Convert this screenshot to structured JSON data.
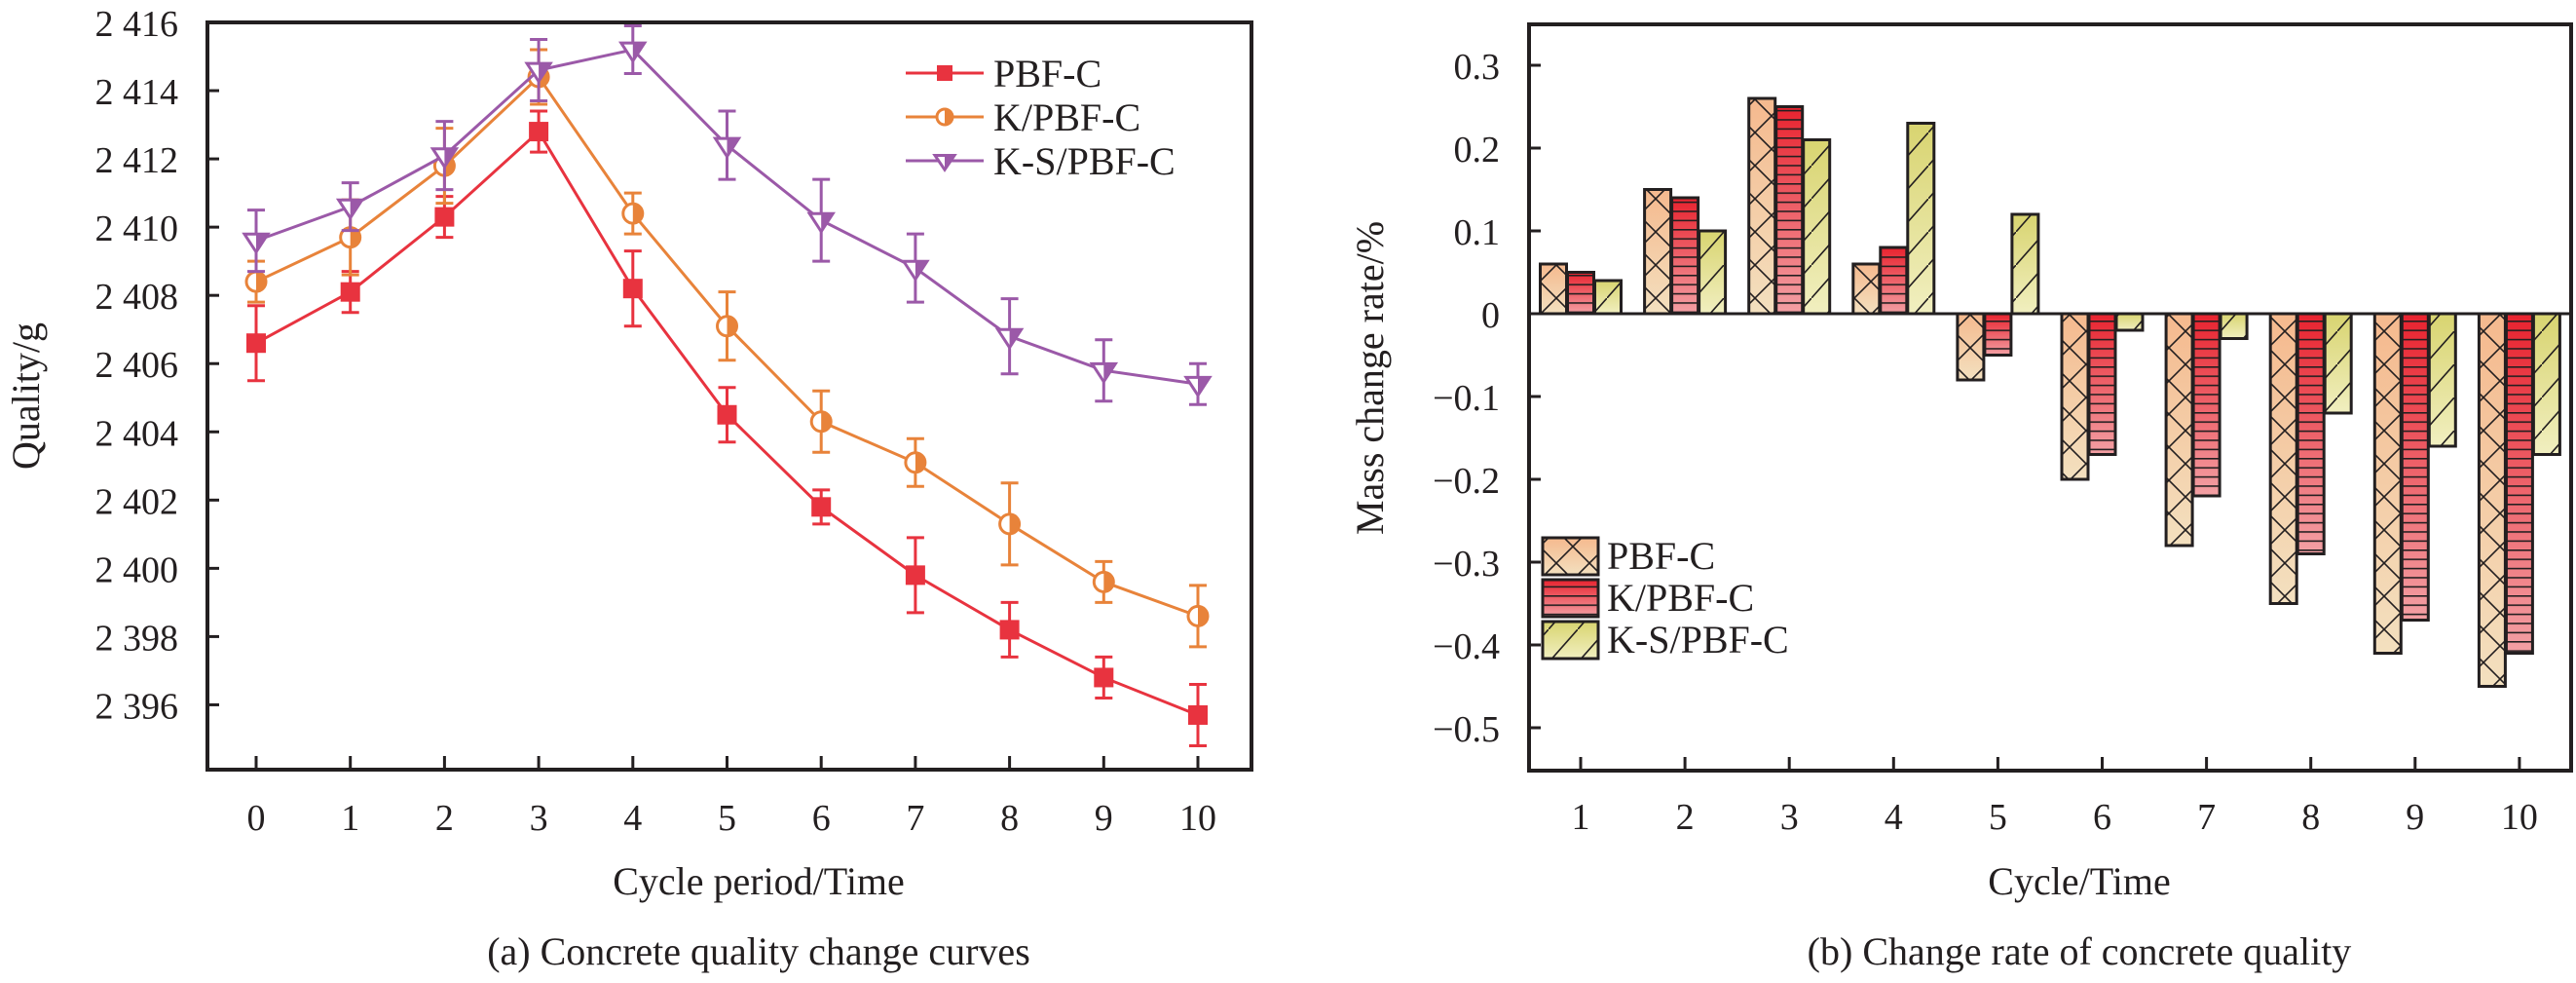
{
  "chart_data": [
    {
      "id": "a",
      "type": "line",
      "title": "",
      "caption": "(a) Concrete quality change curves",
      "xlabel": "Cycle period/Time",
      "ylabel": "Quality/g",
      "x": [
        0,
        1,
        2,
        3,
        4,
        5,
        6,
        7,
        8,
        9,
        10
      ],
      "xticks": [
        "0",
        "1",
        "2",
        "3",
        "4",
        "5",
        "6",
        "7",
        "8",
        "9",
        "10"
      ],
      "yticks": [
        2396,
        2398,
        2400,
        2402,
        2404,
        2406,
        2408,
        2410,
        2412,
        2414,
        2416
      ],
      "ytick_labels": [
        "2 396",
        "2 398",
        "2 400",
        "2 402",
        "2 404",
        "2 406",
        "2 408",
        "2 410",
        "2 412",
        "2 414",
        "2 416"
      ],
      "ylim": [
        2394.1,
        2416
      ],
      "xlim": [
        -0.5,
        10.55
      ],
      "grid": false,
      "legend_position": "top-right",
      "series": [
        {
          "name": "PBF-C",
          "color": "#e8333f",
          "marker": "square",
          "values": [
            2406.6,
            2408.1,
            2410.3,
            2412.8,
            2408.2,
            2404.5,
            2401.8,
            2399.8,
            2398.2,
            2396.8,
            2395.7
          ],
          "errors": [
            1.1,
            0.6,
            0.6,
            0.6,
            1.1,
            0.8,
            0.5,
            1.1,
            0.8,
            0.6,
            0.9
          ]
        },
        {
          "name": "K/PBF-C",
          "color": "#e8833a",
          "marker": "half-circle",
          "values": [
            2408.4,
            2409.7,
            2411.8,
            2414.4,
            2410.4,
            2407.1,
            2404.3,
            2403.1,
            2401.3,
            2399.6,
            2398.6
          ],
          "errors": [
            0.6,
            1.1,
            1.1,
            0.8,
            0.6,
            1.0,
            0.9,
            0.7,
            1.2,
            0.6,
            0.9
          ]
        },
        {
          "name": "K-S/PBF-C",
          "color": "#9b59a8",
          "marker": "half-triangle-down",
          "values": [
            2409.6,
            2410.6,
            2412.1,
            2414.6,
            2415.2,
            2412.4,
            2410.2,
            2408.8,
            2406.8,
            2405.8,
            2405.4
          ],
          "errors": [
            0.9,
            0.7,
            1.0,
            0.9,
            0.7,
            1.0,
            1.2,
            1.0,
            1.1,
            0.9,
            0.6
          ]
        }
      ]
    },
    {
      "id": "b",
      "type": "bar",
      "title": "",
      "caption": "(b) Change rate of concrete quality",
      "xlabel": "Cycle/Time",
      "ylabel": "Mass change rate/%",
      "categories": [
        "1",
        "2",
        "3",
        "4",
        "5",
        "6",
        "7",
        "8",
        "9",
        "10"
      ],
      "yticks": [
        0.3,
        0.2,
        0.1,
        0,
        -0.1,
        -0.2,
        -0.3,
        -0.4,
        -0.5
      ],
      "ytick_labels": [
        "0.3",
        "0.2",
        "0.1",
        "0",
        "−0.1",
        "−0.2",
        "−0.3",
        "−0.4",
        "−0.5"
      ],
      "ylim": [
        -0.55,
        0.35
      ],
      "grid": false,
      "legend_position": "lower-left",
      "series": [
        {
          "name": "PBF-C",
          "pattern": "crosshatch",
          "colors": [
            "#f5b98e",
            "#f3e0bf"
          ],
          "values": [
            0.06,
            0.15,
            0.26,
            0.06,
            -0.08,
            -0.2,
            -0.28,
            -0.35,
            -0.41,
            -0.45
          ]
        },
        {
          "name": "K/PBF-C",
          "pattern": "horizontal",
          "colors": [
            "#e8232f",
            "#f3a0a4"
          ],
          "values": [
            0.05,
            0.14,
            0.25,
            0.08,
            -0.05,
            -0.17,
            -0.22,
            -0.29,
            -0.37,
            -0.41
          ]
        },
        {
          "name": "K-S/PBF-C",
          "pattern": "diagonal",
          "colors": [
            "#d8d470",
            "#f1efc0"
          ],
          "values": [
            0.04,
            0.1,
            0.21,
            0.23,
            0.12,
            -0.02,
            -0.03,
            -0.12,
            -0.16,
            -0.17
          ]
        }
      ]
    }
  ]
}
